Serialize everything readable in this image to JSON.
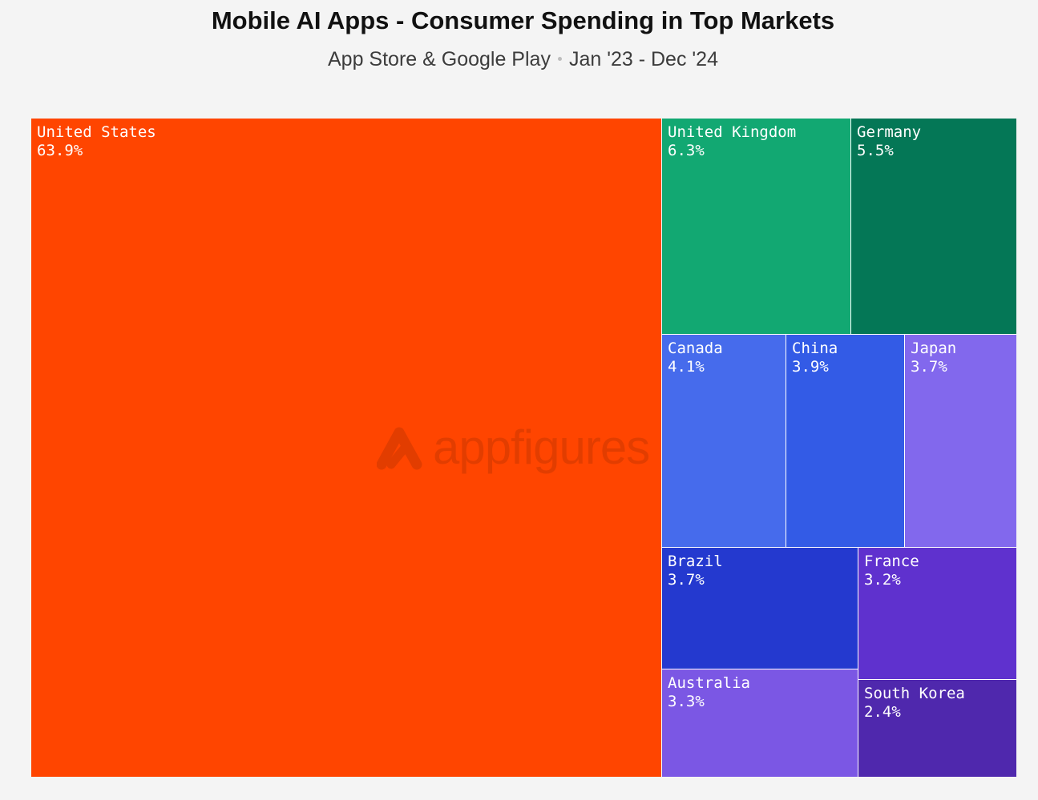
{
  "header": {
    "title": "Mobile AI Apps - Consumer Spending in Top Markets",
    "subtitle_left": "App Store & Google Play",
    "subtitle_right": "Jan '23 - Dec '24"
  },
  "watermark": {
    "text": "appfigures",
    "icon": "appfigures-logo-icon"
  },
  "chart_data": {
    "type": "treemap",
    "title": "Mobile AI Apps - Consumer Spending in Top Markets",
    "subtitle": "App Store & Google Play • Jan '23 - Dec '24",
    "unit": "%",
    "items": [
      {
        "name": "United States",
        "value": 63.9,
        "label": "63.9%",
        "color": "#ff4500"
      },
      {
        "name": "United Kingdom",
        "value": 6.3,
        "label": "6.3%",
        "color": "#12a872"
      },
      {
        "name": "Germany",
        "value": 5.5,
        "label": "5.5%",
        "color": "#047756"
      },
      {
        "name": "Canada",
        "value": 4.1,
        "label": "4.1%",
        "color": "#466bec"
      },
      {
        "name": "China",
        "value": 3.9,
        "label": "3.9%",
        "color": "#335be6"
      },
      {
        "name": "Japan",
        "value": 3.7,
        "label": "3.7%",
        "color": "#8268ed"
      },
      {
        "name": "Brazil",
        "value": 3.7,
        "label": "3.7%",
        "color": "#2439cf"
      },
      {
        "name": "France",
        "value": 3.2,
        "label": "3.2%",
        "color": "#5f31ce"
      },
      {
        "name": "Australia",
        "value": 3.3,
        "label": "3.3%",
        "color": "#7b57e4"
      },
      {
        "name": "South Korea",
        "value": 2.4,
        "label": "2.4%",
        "color": "#4f28ad"
      }
    ]
  }
}
